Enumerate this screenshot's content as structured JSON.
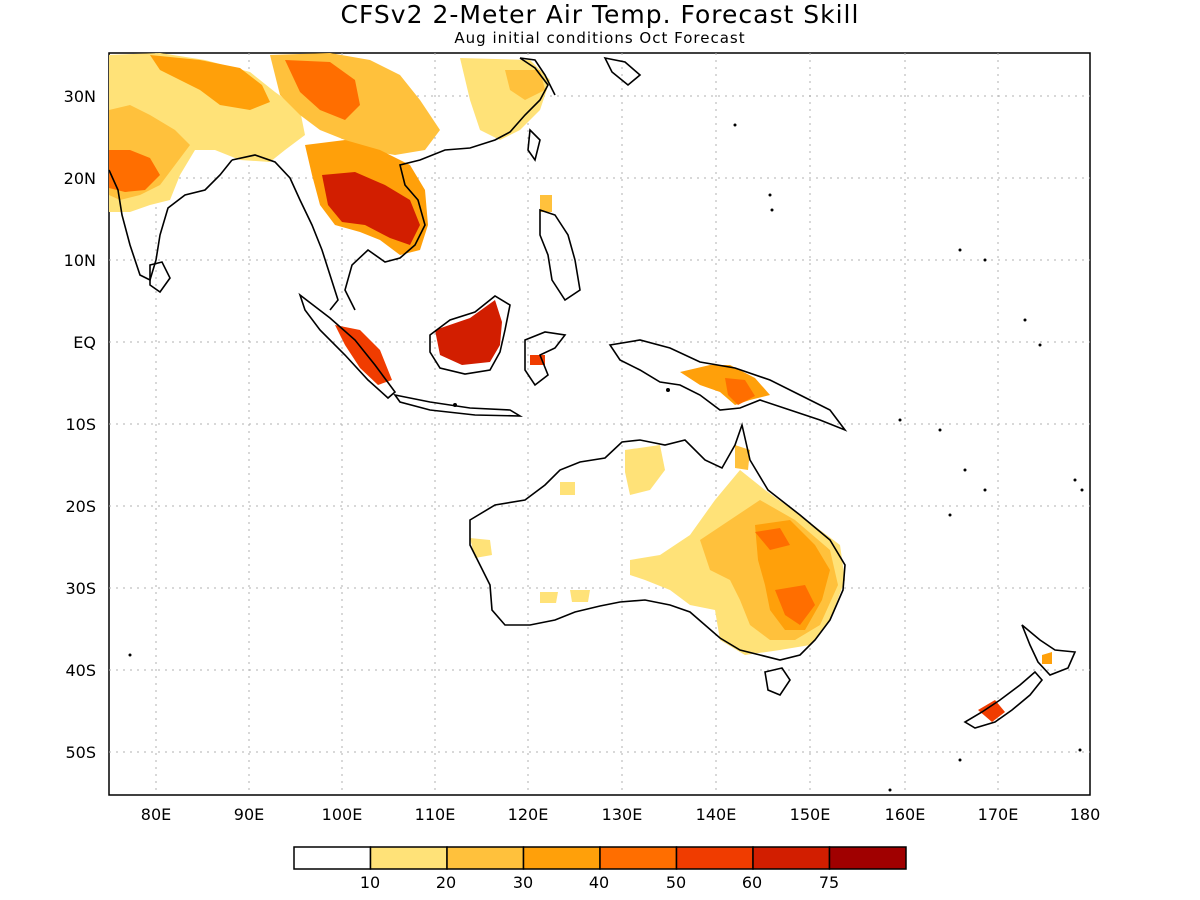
{
  "title": "CFSv2 2-Meter Air Temp. Forecast Skill",
  "subtitle": "Aug initial conditions  Oct Forecast",
  "lat_labels": [
    "30N",
    "20N",
    "10N",
    "EQ",
    "10S",
    "20S",
    "30S",
    "40S",
    "50S"
  ],
  "lon_labels": [
    "80E",
    "90E",
    "100E",
    "110E",
    "120E",
    "130E",
    "140E",
    "150E",
    "160E",
    "170E",
    "180"
  ],
  "legend": {
    "labels": [
      "10",
      "20",
      "30",
      "40",
      "50",
      "60",
      "75"
    ],
    "colors": [
      "#ffffff",
      "#ffe278",
      "#ffc13c",
      "#ffa00a",
      "#ff6e00",
      "#f03c00",
      "#d21e00",
      "#a00000"
    ]
  }
}
